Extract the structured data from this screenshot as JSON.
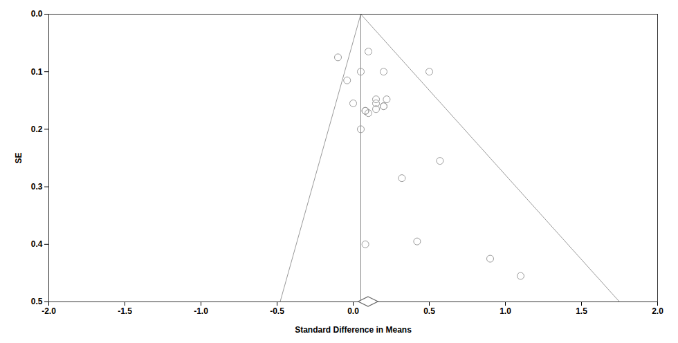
{
  "chart_data": {
    "type": "funnel",
    "xlabel": "Standard Difference in Means",
    "ylabel": "SE",
    "x": [
      -0.1,
      -0.04,
      0.05,
      0.1,
      0.0,
      0.08,
      0.15,
      0.2,
      0.1,
      0.15,
      0.22,
      0.2,
      0.08,
      0.05,
      0.2,
      0.5,
      0.15,
      0.32,
      0.08,
      0.42,
      0.57,
      0.9,
      1.1
    ],
    "values": [
      0.075,
      0.115,
      0.1,
      0.065,
      0.155,
      0.168,
      0.148,
      0.16,
      0.172,
      0.155,
      0.148,
      0.16,
      0.168,
      0.2,
      0.1,
      0.1,
      0.165,
      0.285,
      0.4,
      0.395,
      0.255,
      0.425,
      0.455
    ],
    "color": "#999999",
    "funnel": {
      "apex_x": 0.05,
      "apex_y": 0.0,
      "left_base_x": -0.48,
      "right_base_x": 1.75,
      "base_se": 0.5
    },
    "summary": {
      "x": 0.1,
      "half_width": 0.065
    },
    "xlim": [
      -2.0,
      2.0
    ],
    "ylim": [
      0.5,
      0.0
    ],
    "xticks": [
      {
        "value": -2.0,
        "label": "-2.0"
      },
      -1.5,
      {
        "value": -1.0,
        "label": "-1.0"
      },
      -0.5,
      {
        "value": 0.0,
        "label": "0.0"
      },
      0.5,
      {
        "value": 1.0,
        "label": "1.0"
      },
      1.5,
      {
        "value": 2.0,
        "label": "2.0"
      }
    ],
    "yticks": [
      {
        "value": 0.0,
        "label": "0.0"
      },
      0.1,
      0.2,
      0.3,
      0.4,
      0.5
    ],
    "grid": false
  }
}
